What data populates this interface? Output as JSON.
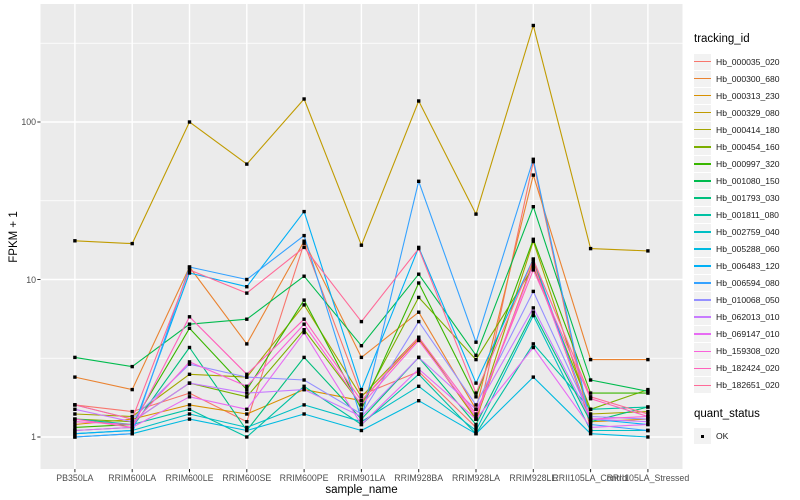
{
  "chart_data": {
    "type": "line",
    "title": "",
    "xlabel": "sample_name",
    "ylabel": "FPKM + 1",
    "y_scale": "log10",
    "ylim": [
      0.63,
      530
    ],
    "yticks": [
      1,
      10,
      100
    ],
    "y_minor_ticks": [
      3.1623,
      31.623,
      316.23
    ],
    "grid": true,
    "legend_position": "right",
    "point_marker": "black-square",
    "categories": [
      "PB350LA",
      "RRIM600LA",
      "RRIM600LE",
      "RRIM600SE",
      "RRIM600PE",
      "RRIM901LA",
      "RRIM928BA",
      "RRIM928LA",
      "RRIM928LE",
      "RRII105LA_Control",
      "RRII105LA_Stressed"
    ],
    "series": [
      {
        "name": "Hb_000035_020",
        "color": "#F8766D",
        "values": [
          1.6,
          1.45,
          1.9,
          1.25,
          17.0,
          1.85,
          2.6,
          1.15,
          56,
          1.1,
          1.1
        ]
      },
      {
        "name": "Hb_000300_680",
        "color": "#EA8331",
        "values": [
          2.4,
          2.0,
          12.0,
          3.9,
          17.5,
          3.2,
          6.2,
          1.5,
          46,
          3.1,
          3.1
        ]
      },
      {
        "name": "Hb_000313_230",
        "color": "#D89000",
        "values": [
          1.2,
          1.3,
          1.6,
          1.4,
          2.0,
          1.7,
          4.2,
          1.3,
          13.0,
          1.25,
          1.3
        ]
      },
      {
        "name": "Hb_000329_080",
        "color": "#C09B00",
        "values": [
          17.6,
          16.9,
          100,
          54,
          140,
          16.5,
          136,
          26,
          410,
          15.7,
          15.2
        ]
      },
      {
        "name": "Hb_000414_180",
        "color": "#A3A500",
        "values": [
          1.4,
          1.35,
          2.5,
          2.4,
          6.9,
          1.8,
          4.3,
          1.3,
          17.5,
          1.4,
          1.45
        ]
      },
      {
        "name": "Hb_000454_160",
        "color": "#7CAE00",
        "values": [
          1.3,
          1.25,
          2.2,
          1.8,
          4.8,
          1.6,
          7.7,
          3.1,
          12.0,
          1.5,
          2.0
        ]
      },
      {
        "name": "Hb_000997_320",
        "color": "#39B600",
        "values": [
          1.15,
          1.2,
          4.9,
          2.0,
          7.4,
          1.5,
          9.5,
          1.8,
          18.0,
          1.9,
          1.9
        ]
      },
      {
        "name": "Hb_001080_150",
        "color": "#00BB4E",
        "values": [
          3.2,
          2.8,
          5.2,
          5.6,
          10.5,
          3.8,
          10.8,
          3.3,
          29.0,
          2.3,
          1.95
        ]
      },
      {
        "name": "Hb_001793_030",
        "color": "#00BF7D",
        "values": [
          1.1,
          1.15,
          3.7,
          1.1,
          3.2,
          1.3,
          3.2,
          1.2,
          6.2,
          1.25,
          1.55
        ]
      },
      {
        "name": "Hb_001811_080",
        "color": "#00C1A3",
        "values": [
          1.3,
          1.2,
          1.5,
          1.0,
          2.1,
          1.2,
          2.5,
          1.05,
          3.9,
          1.5,
          1.55
        ]
      },
      {
        "name": "Hb_002759_040",
        "color": "#00BFC4",
        "values": [
          1.05,
          1.1,
          1.4,
          1.15,
          1.6,
          1.25,
          2.1,
          1.1,
          5.9,
          1.1,
          1.1
        ]
      },
      {
        "name": "Hb_005288_060",
        "color": "#00BAE0",
        "values": [
          1.0,
          1.05,
          1.3,
          1.1,
          1.4,
          1.1,
          1.7,
          1.05,
          2.4,
          1.05,
          1.0
        ]
      },
      {
        "name": "Hb_006483_120",
        "color": "#00B0F6",
        "values": [
          1.05,
          1.1,
          11.0,
          9.0,
          27.0,
          2.0,
          16.0,
          2.2,
          13.5,
          1.3,
          1.2
        ]
      },
      {
        "name": "Hb_006594_080",
        "color": "#35A2FF",
        "values": [
          1.0,
          1.05,
          12.0,
          10.0,
          19.0,
          1.3,
          42.0,
          4.0,
          58.0,
          1.2,
          1.1
        ]
      },
      {
        "name": "Hb_010068_050",
        "color": "#9590FF",
        "values": [
          1.6,
          1.3,
          2.9,
          2.4,
          2.3,
          1.4,
          5.4,
          1.6,
          8.4,
          1.35,
          1.3
        ]
      },
      {
        "name": "Hb_062013_010",
        "color": "#C77CFF",
        "values": [
          1.5,
          1.25,
          2.2,
          1.9,
          2.0,
          1.35,
          3.2,
          1.5,
          6.6,
          1.3,
          1.25
        ]
      },
      {
        "name": "Hb_069147_010",
        "color": "#E76BF3",
        "values": [
          1.1,
          1.15,
          1.8,
          1.5,
          4.6,
          1.2,
          2.7,
          1.3,
          3.7,
          1.15,
          1.2
        ]
      },
      {
        "name": "Hb_159308_020",
        "color": "#FA62DB",
        "values": [
          1.25,
          1.2,
          3.0,
          2.1,
          5.2,
          1.6,
          4.1,
          1.35,
          12.5,
          1.3,
          1.35
        ]
      },
      {
        "name": "Hb_182424_020",
        "color": "#FF62BC",
        "values": [
          1.3,
          1.15,
          5.8,
          2.5,
          5.6,
          1.7,
          4.3,
          1.4,
          11.5,
          1.75,
          1.35
        ]
      },
      {
        "name": "Hb_182651_020",
        "color": "#FF6A98",
        "values": [
          1.6,
          1.3,
          11.5,
          8.2,
          16.0,
          5.4,
          15.7,
          1.9,
          13.4,
          1.8,
          1.4
        ]
      }
    ]
  },
  "legend": {
    "title": "tracking_id"
  },
  "legend2": {
    "title": "quant_status",
    "items": [
      {
        "label": "OK",
        "marker": "black-square"
      }
    ]
  },
  "colors": {
    "panel_background": "#EBEBEB",
    "grid": "#FFFFFF",
    "axis_text": "#4D4D4D",
    "tick_mark": "#333333",
    "point": "#000000",
    "legend_key_background": "#F2F2F2",
    "figure_background": "#FFFFFF"
  }
}
